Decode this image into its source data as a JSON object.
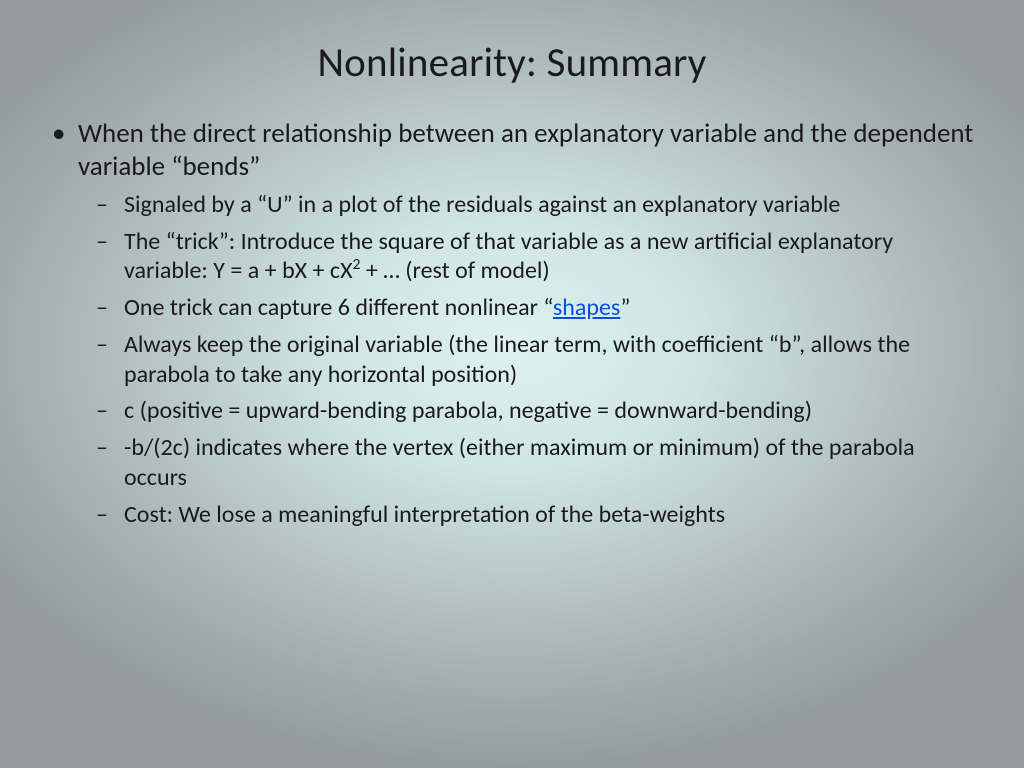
{
  "background": {
    "center_color": "#dff1f1",
    "mid_color": "#cfe4e4",
    "outer_color": "#a9b3b3",
    "edge_color": "#949c9c"
  },
  "text_color": "#1a1a1a",
  "link_color": "#0951d9",
  "title": "Nonlinearity: Summary",
  "title_fontsize": 41,
  "bullet_l1_fontsize": 27,
  "bullet_l2_fontsize": 24,
  "l1": {
    "text": "When the direct relationship between an explanatory variable and the dependent variable “bends”"
  },
  "l2": {
    "items": [
      {
        "text": "Signaled by a “U” in a plot of the residuals against an explanatory variable"
      },
      {
        "pre": "The “trick”: Introduce the square of that variable as a new artificial explanatory variable: Y = a + bX + cX",
        "sup": "2",
        "post": " + … (rest of model)"
      },
      {
        "pre": "One trick can capture 6 different nonlinear “",
        "link": "shapes",
        "post": "”"
      },
      {
        "text": "Always keep the original variable (the linear term, with coefficient “b”, allows the parabola to take any horizontal position)"
      },
      {
        "text": "c (positive = upward-bending parabola, negative = downward-bending)"
      },
      {
        "text": "-b/(2c) indicates where the vertex (either maximum or minimum) of the parabola occurs"
      },
      {
        "text": "Cost: We lose a meaningful interpretation of the beta-weights"
      }
    ]
  }
}
